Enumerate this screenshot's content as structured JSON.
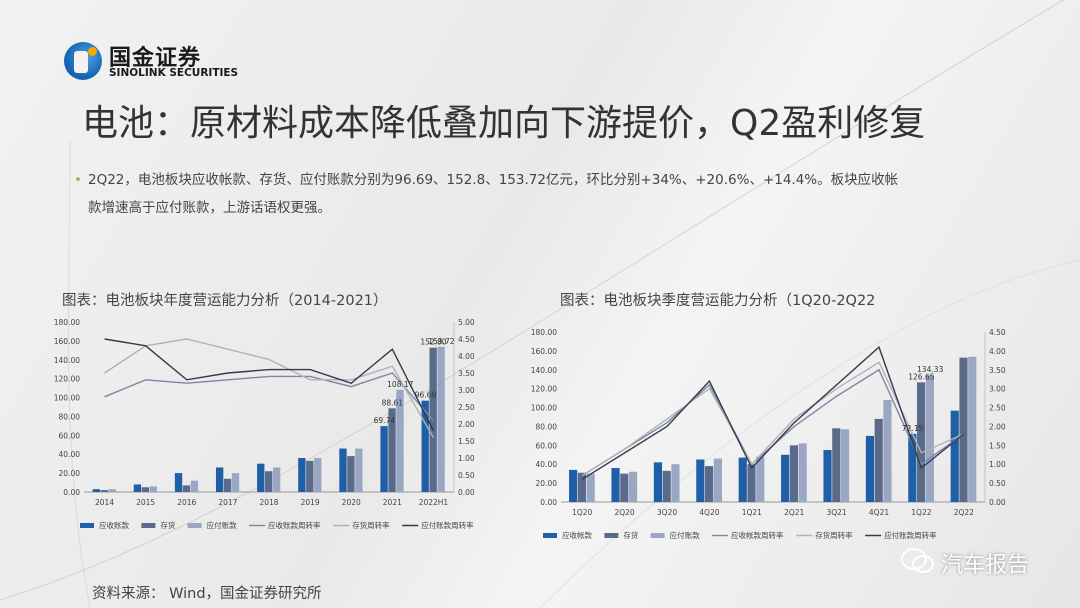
{
  "logo": {
    "cn": "国金证券",
    "en": "SINOLINK SECURITIES"
  },
  "title": "电池：原材料成本降低叠加向下游提价，Q2盈利修复",
  "bullet": {
    "line1": "2Q22，电池板块应收帐款、存货、应付账款分别为96.69、152.8、153.72亿元，环比分别+34%、+20.6%、+14.4%。板块应收帐",
    "line2": "款增速高于应付账款，上游话语权更强。"
  },
  "source": "资料来源： Wind，国金证券研究所",
  "watermark": "汽车报告",
  "chart_data": [
    {
      "type": "bar",
      "title": "图表：电池板块年度营运能力分析（2014-2021）",
      "categories": [
        "2014",
        "2015",
        "2016",
        "2017",
        "2018",
        "2019",
        "2020",
        "2021",
        "2022H1"
      ],
      "series": [
        {
          "name": "应收账款",
          "kind": "bar",
          "axis": "left",
          "color": "#1f5fa8",
          "values": [
            3,
            8,
            20,
            26,
            30,
            36,
            46,
            69.74,
            96.69
          ]
        },
        {
          "name": "存货",
          "kind": "bar",
          "axis": "left",
          "color": "#5a6a8a",
          "values": [
            2,
            5,
            7,
            14,
            22,
            33,
            38,
            88.61,
            152.8
          ]
        },
        {
          "name": "应付账款",
          "kind": "bar",
          "axis": "left",
          "color": "#9aa7c3",
          "values": [
            3,
            6,
            12,
            20,
            26,
            36,
            46,
            108.17,
            153.72
          ]
        },
        {
          "name": "应收账款周转率",
          "kind": "line",
          "axis": "right",
          "color": "#7b86a8",
          "values": [
            2.8,
            3.3,
            3.2,
            3.3,
            3.4,
            3.4,
            3.1,
            3.5,
            2.1
          ]
        },
        {
          "name": "存货周转率",
          "kind": "line",
          "axis": "right",
          "color": "#b2b2b2",
          "values": [
            3.5,
            4.3,
            4.5,
            4.2,
            3.9,
            3.3,
            3.3,
            3.7,
            1.6
          ]
        },
        {
          "name": "应付账款周转率",
          "kind": "line",
          "axis": "right",
          "color": "#333a4e",
          "values": [
            4.5,
            4.3,
            3.3,
            3.5,
            3.6,
            3.6,
            3.2,
            4.2,
            1.8
          ]
        }
      ],
      "data_labels": [
        {
          "category": "2021",
          "series": "应收账款",
          "text": "69.74"
        },
        {
          "category": "2021",
          "series": "存货",
          "text": "88.61"
        },
        {
          "category": "2021",
          "series": "应付账款",
          "text": "108.17"
        },
        {
          "category": "2022H1",
          "series": "应收账款",
          "text": "96.69"
        },
        {
          "category": "2022H1",
          "series": "存货",
          "text": "152.80"
        },
        {
          "category": "2022H1",
          "series": "应付账款",
          "text": "153.72"
        }
      ],
      "left_axis": {
        "min": 0,
        "max": 180,
        "ticks": [
          "0.00",
          "20.00",
          "40.00",
          "60.00",
          "80.00",
          "100.00",
          "120.00",
          "140.00",
          "160.00",
          "180.00"
        ]
      },
      "right_axis": {
        "min": 0,
        "max": 5,
        "ticks": [
          "0.00",
          "0.50",
          "1.00",
          "1.50",
          "2.00",
          "2.50",
          "3.00",
          "3.50",
          "4.00",
          "4.50",
          "5.00"
        ]
      },
      "legend_position": "bottom"
    },
    {
      "type": "bar",
      "title": "图表：电池板块季度营运能力分析（1Q20-2Q22",
      "categories": [
        "1Q20",
        "2Q20",
        "3Q20",
        "4Q20",
        "1Q21",
        "2Q21",
        "3Q21",
        "4Q21",
        "1Q22",
        "2Q22"
      ],
      "series": [
        {
          "name": "应收帐款",
          "kind": "bar",
          "axis": "left",
          "color": "#1f5fa8",
          "values": [
            34,
            36,
            42,
            45,
            47,
            50,
            55,
            70,
            72.15,
            96.69
          ]
        },
        {
          "name": "存货",
          "kind": "bar",
          "axis": "left",
          "color": "#5a6a8a",
          "values": [
            31,
            30,
            33,
            38,
            40,
            60,
            78,
            88,
            126.65,
            152.8
          ]
        },
        {
          "name": "应付账款",
          "kind": "bar",
          "axis": "left",
          "color": "#9aa7c3",
          "values": [
            30,
            32,
            40,
            46,
            48,
            62,
            77,
            108,
            134.33,
            153.72
          ]
        },
        {
          "name": "应收帐款周转率",
          "kind": "line",
          "axis": "right",
          "color": "#7b86a8",
          "values": [
            0.7,
            1.4,
            2.1,
            3.1,
            1.0,
            2.0,
            2.8,
            3.5,
            1.0,
            1.8
          ]
        },
        {
          "name": "存货周转率",
          "kind": "line",
          "axis": "right",
          "color": "#b2b2b2",
          "values": [
            0.7,
            1.4,
            2.2,
            3.0,
            1.0,
            2.2,
            3.0,
            3.7,
            1.3,
            1.8
          ]
        },
        {
          "name": "应付账款周转率",
          "kind": "line",
          "axis": "right",
          "color": "#333a4e",
          "values": [
            0.6,
            1.3,
            2.0,
            3.2,
            0.9,
            2.1,
            3.1,
            4.1,
            0.9,
            1.8
          ]
        }
      ],
      "data_labels": [
        {
          "category": "1Q22",
          "series": "应收帐款",
          "text": "72.15"
        },
        {
          "category": "1Q22",
          "series": "存货",
          "text": "126.65"
        },
        {
          "category": "1Q22",
          "series": "应付账款",
          "text": "134.33"
        }
      ],
      "left_axis": {
        "min": 0,
        "max": 180,
        "ticks": [
          "0.00",
          "20.00",
          "40.00",
          "60.00",
          "80.00",
          "100.00",
          "120.00",
          "140.00",
          "160.00",
          "180.00"
        ]
      },
      "right_axis": {
        "min": 0,
        "max": 4.5,
        "ticks": [
          "0.00",
          "0.50",
          "1.00",
          "1.50",
          "2.00",
          "2.50",
          "3.00",
          "3.50",
          "4.00",
          "4.50"
        ]
      },
      "legend_position": "bottom"
    }
  ]
}
